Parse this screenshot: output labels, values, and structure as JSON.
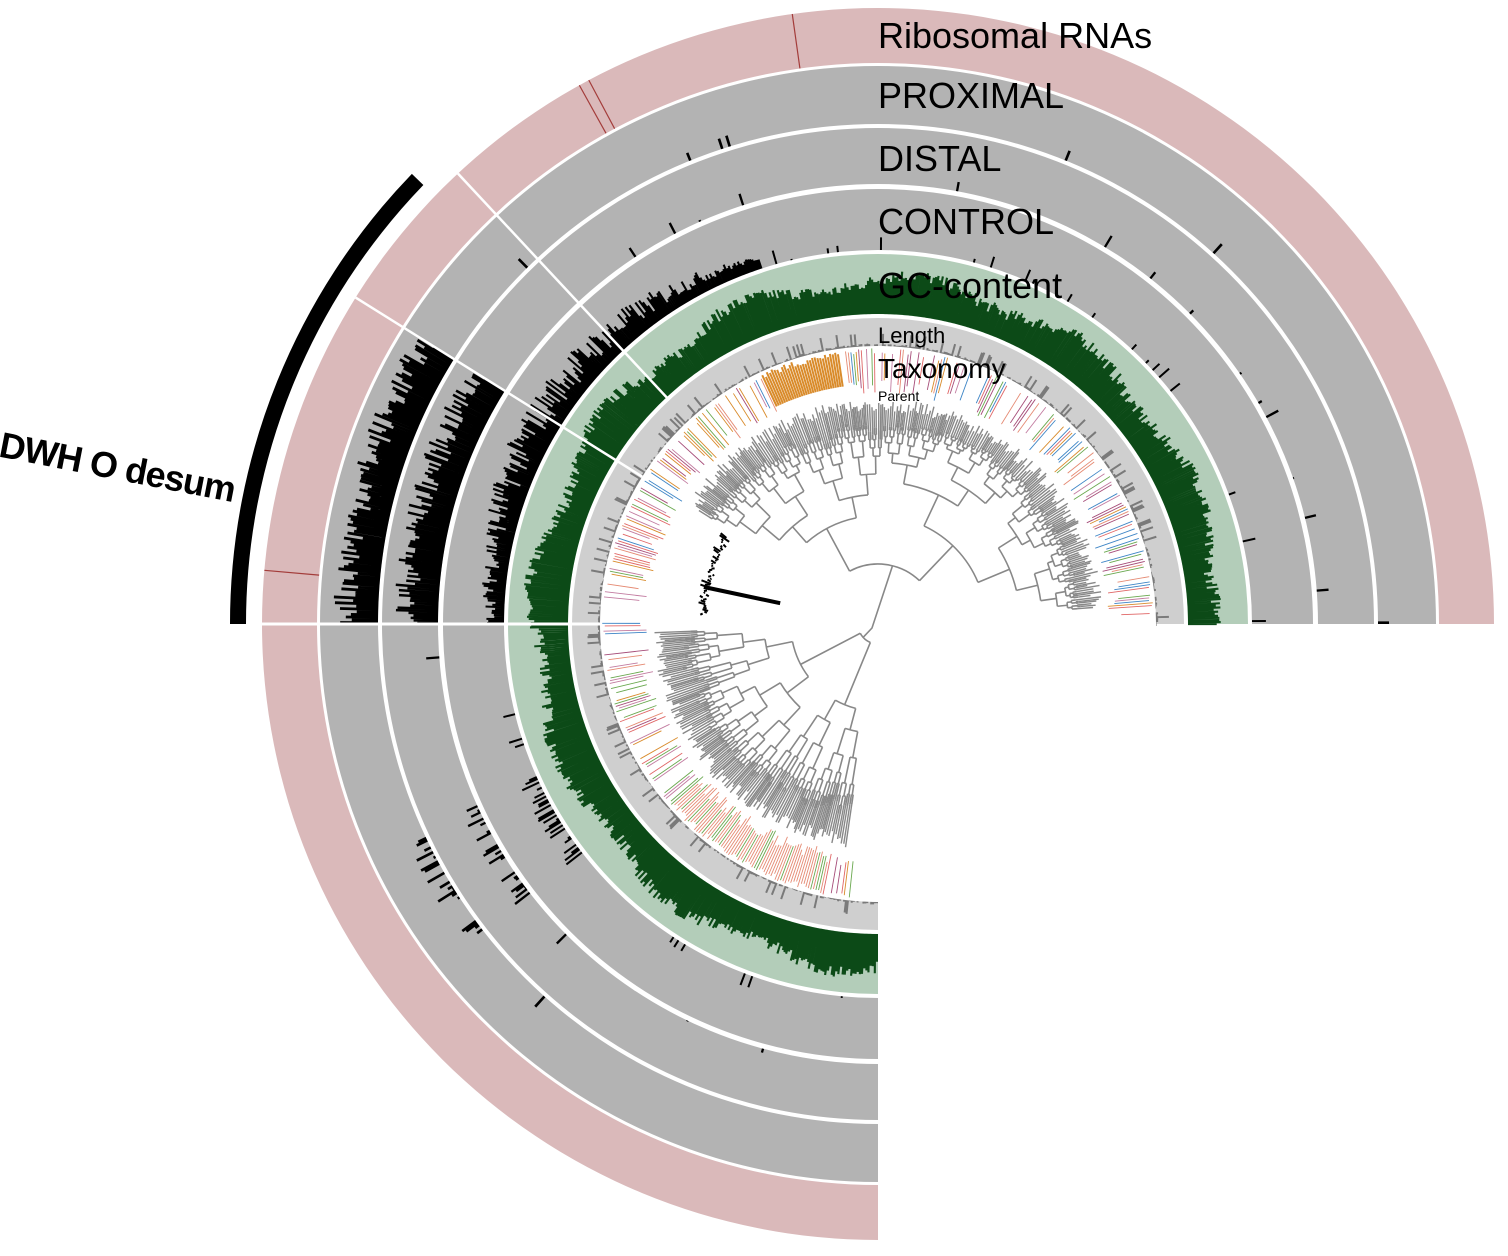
{
  "layers": [
    {
      "id": "ribosomal",
      "label": "Ribosomal RNAs",
      "color": "#7a2320",
      "band_color": "#dab9ba",
      "mark_color": "#a33c3a"
    },
    {
      "id": "proximal",
      "label": "PROXIMAL",
      "color": "#000000",
      "band_color": "#b3b3b3",
      "mark_color": "#000000"
    },
    {
      "id": "distal",
      "label": "DISTAL",
      "color": "#000000",
      "band_color": "#b3b3b3",
      "mark_color": "#000000"
    },
    {
      "id": "control",
      "label": "CONTROL",
      "color": "#000000",
      "band_color": "#b3b3b3",
      "mark_color": "#000000"
    },
    {
      "id": "gc",
      "label": "GC-content",
      "color": "#0c4a17",
      "band_color": "#b3cdb9",
      "mark_color": "#0c4a17"
    },
    {
      "id": "length",
      "label": "Length",
      "color": "#444444",
      "band_color": "#cfcfcf",
      "mark_color": "#555555"
    },
    {
      "id": "taxonomy",
      "label": "Taxonomy",
      "color": "#000000",
      "band_color": "#ffffff",
      "mark_color": "#e8907a"
    },
    {
      "id": "parent",
      "label": "Parent",
      "color": "#000000",
      "band_color": "#ffffff",
      "mark_color": "#000000"
    }
  ],
  "bin": {
    "label": "DWH O desum",
    "color": "#000000"
  },
  "tree_color": "#888888",
  "taxonomy_palette": [
    "#d98b2b",
    "#e58a73",
    "#6aa84f",
    "#c27ba0",
    "#3d85c6",
    "#e06666",
    "#a64d79"
  ]
}
